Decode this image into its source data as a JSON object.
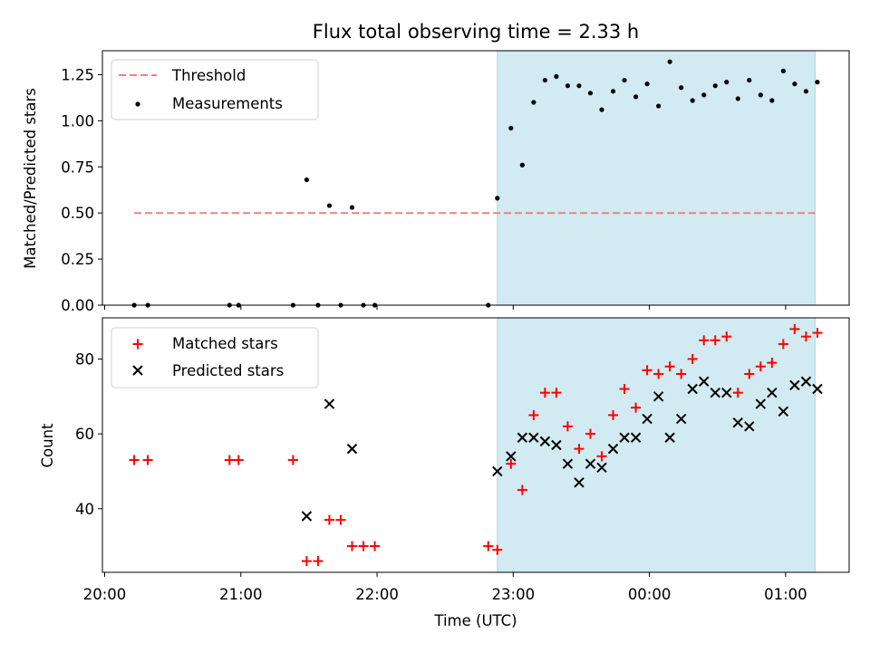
{
  "colors": {
    "shade": "#add8e6",
    "threshold": "#f08080",
    "matched": "#ff0000",
    "predicted": "#000000",
    "measurement": "#000000"
  },
  "chart_data": [
    {
      "type": "scatter",
      "title": "Flux total observing time = 2.33 h",
      "xlabel": "",
      "ylabel": "Matched/Predicted stars",
      "ylim": [
        0,
        1.38
      ],
      "yticks": [
        0.0,
        0.25,
        0.5,
        0.75,
        1.0,
        1.25
      ],
      "ytick_labels": [
        "0.00",
        "0.25",
        "0.50",
        "0.75",
        "1.00",
        "1.25"
      ],
      "legend_position": "upper-left",
      "shaded_span": [
        "22:53",
        "01:13"
      ],
      "threshold": {
        "name": "Threshold",
        "y": 0.5,
        "x_range": [
          "20:13",
          "01:13"
        ]
      },
      "series": [
        {
          "name": "Measurements",
          "x": [
            "20:13",
            "20:19",
            "20:55",
            "20:59",
            "21:23",
            "21:29",
            "21:34",
            "21:39",
            "21:44",
            "21:49",
            "21:54",
            "21:59",
            "22:49",
            "22:53",
            "22:59",
            "23:04",
            "23:09",
            "23:14",
            "23:19",
            "23:24",
            "23:29",
            "23:34",
            "23:39",
            "23:44",
            "23:49",
            "23:54",
            "23:59",
            "00:04",
            "00:09",
            "00:14",
            "00:19",
            "00:24",
            "00:29",
            "00:34",
            "00:39",
            "00:44",
            "00:49",
            "00:54",
            "00:59",
            "01:04",
            "01:09",
            "01:14"
          ],
          "y": [
            0,
            0,
            0,
            0,
            0,
            0.68,
            0,
            0.54,
            0,
            0.53,
            0,
            0,
            0,
            0.58,
            0.96,
            0.76,
            1.1,
            1.22,
            1.24,
            1.19,
            1.19,
            1.15,
            1.06,
            1.16,
            1.22,
            1.13,
            1.2,
            1.08,
            1.32,
            1.18,
            1.11,
            1.14,
            1.19,
            1.21,
            1.12,
            1.22,
            1.14,
            1.11,
            1.27,
            1.2,
            1.16,
            1.21
          ]
        }
      ]
    },
    {
      "type": "scatter",
      "title": "",
      "xlabel": "Time (UTC)",
      "ylabel": "Count",
      "ylim": [
        23,
        91
      ],
      "yticks": [
        40,
        60,
        80
      ],
      "ytick_labels": [
        "40",
        "60",
        "80"
      ],
      "xlim": [
        "19:59",
        "01:28"
      ],
      "xticks": [
        "20:00",
        "21:00",
        "22:00",
        "23:00",
        "00:00",
        "01:00"
      ],
      "xtick_labels": [
        "20:00",
        "21:00",
        "22:00",
        "23:00",
        "00:00",
        "01:00"
      ],
      "legend_position": "upper-left",
      "shaded_span": [
        "22:53",
        "01:13"
      ],
      "series": [
        {
          "name": "Matched stars",
          "marker": "+",
          "x": [
            "20:13",
            "20:19",
            "20:55",
            "20:59",
            "21:23",
            "21:29",
            "21:34",
            "21:39",
            "21:44",
            "21:49",
            "21:54",
            "21:59",
            "22:49",
            "22:53",
            "22:59",
            "23:04",
            "23:09",
            "23:14",
            "23:19",
            "23:24",
            "23:29",
            "23:34",
            "23:39",
            "23:44",
            "23:49",
            "23:54",
            "23:59",
            "00:04",
            "00:09",
            "00:14",
            "00:19",
            "00:24",
            "00:29",
            "00:34",
            "00:39",
            "00:44",
            "00:49",
            "00:54",
            "00:59",
            "01:04",
            "01:09",
            "01:14"
          ],
          "y": [
            53,
            53,
            53,
            53,
            53,
            26,
            26,
            37,
            37,
            30,
            30,
            30,
            30,
            29,
            52,
            45,
            65,
            71,
            71,
            62,
            56,
            60,
            54,
            65,
            72,
            67,
            77,
            76,
            78,
            76,
            80,
            85,
            85,
            86,
            71,
            76,
            78,
            79,
            84,
            88,
            86,
            87
          ]
        },
        {
          "name": "Predicted stars",
          "marker": "x",
          "x": [
            "21:29",
            "21:39",
            "21:49",
            "22:53",
            "22:59",
            "23:04",
            "23:09",
            "23:14",
            "23:19",
            "23:24",
            "23:29",
            "23:34",
            "23:39",
            "23:44",
            "23:49",
            "23:54",
            "23:59",
            "00:04",
            "00:09",
            "00:14",
            "00:19",
            "00:24",
            "00:29",
            "00:34",
            "00:39",
            "00:44",
            "00:49",
            "00:54",
            "00:59",
            "01:04",
            "01:09",
            "01:14"
          ],
          "y": [
            38,
            68,
            56,
            50,
            54,
            59,
            59,
            58,
            57,
            52,
            47,
            52,
            51,
            56,
            59,
            59,
            64,
            70,
            59,
            64,
            72,
            74,
            71,
            71,
            63,
            62,
            68,
            71,
            66,
            73,
            74,
            72
          ]
        }
      ]
    }
  ]
}
